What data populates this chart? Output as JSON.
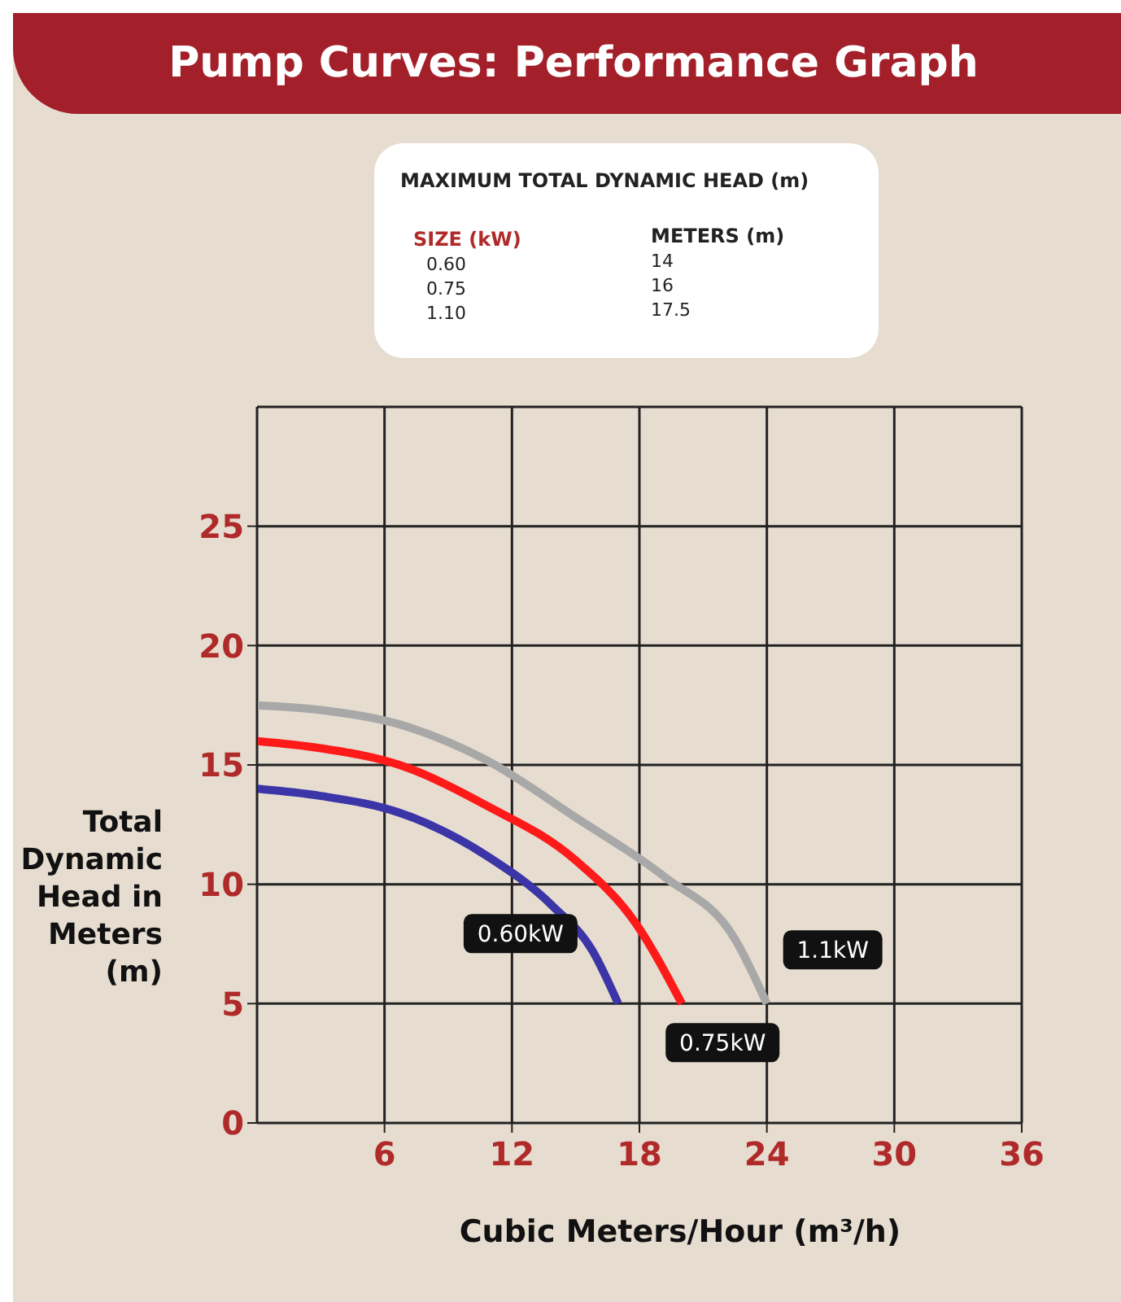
{
  "chart_data": {
    "type": "line",
    "title": "Pump Curves: Performance Graph",
    "xlabel": "Cubic Meters/Hour (m³/h)",
    "ylabel": "Total Dynamic Head in Meters (m)",
    "annotations": [
      "MAXIMUM TOTAL DYNAMIC HEAD (m)",
      "SIZE (kW)",
      "METERS (m)",
      "0.60",
      "14",
      "0.75",
      "16",
      "1.10",
      "17.5"
    ],
    "series": [
      {
        "name": "0.60kW",
        "color": "#3b35a8",
        "x": [
          0,
          3,
          6.7,
          10.8,
          13.9,
          15.8,
          17
        ],
        "values": [
          14,
          13.7,
          13,
          11.2,
          9.1,
          7.2,
          5
        ]
      },
      {
        "name": "0.75kW",
        "color": "#ff1a1a",
        "x": [
          0,
          3,
          6.7,
          10.8,
          15,
          17.8,
          20
        ],
        "values": [
          16,
          15.7,
          15,
          13.3,
          11,
          8.4,
          5
        ]
      },
      {
        "name": "1.1kW",
        "color": "#a8a8a8",
        "x": [
          0,
          3,
          6.7,
          10.8,
          15,
          19.2,
          22.5,
          24
        ],
        "values": [
          17.5,
          17.3,
          16.7,
          15.2,
          12.8,
          10.3,
          7.7,
          5
        ]
      }
    ],
    "xlim": [
      0,
      36
    ],
    "xticks": [
      6,
      12,
      18,
      24,
      30,
      36
    ],
    "ylim": [
      0,
      30
    ],
    "yticks": [
      0,
      5,
      10,
      15,
      20,
      25
    ],
    "grid": true,
    "legend": false,
    "marker": "none",
    "line_style": "solid"
  }
}
